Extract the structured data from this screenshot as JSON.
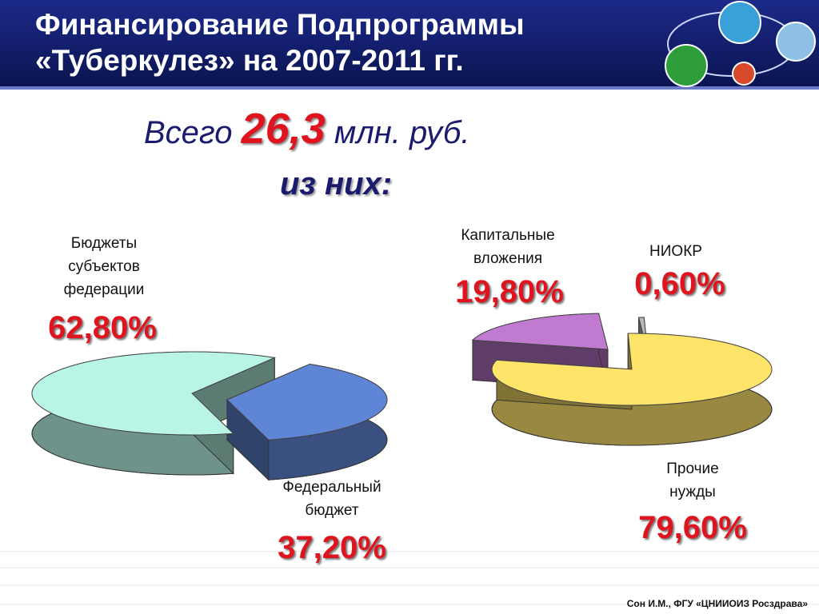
{
  "slide": {
    "title": "Финансирование Подпрограммы «Туберкулез» на 2007-2011 гг.",
    "total_prefix": "Всего",
    "total_value": "26,3",
    "total_unit": "млн. руб.",
    "subtitle": "из них:",
    "footer": "Сон И.М., ФГУ «ЦНИИОИЗ Росздрава»"
  },
  "chart_data": [
    {
      "type": "pie3d",
      "categories": [
        "Бюджеты субъектов федерации",
        "Федеральный бюджет"
      ],
      "values": [
        62.8,
        37.2
      ],
      "value_labels": [
        "62,80%",
        "37,20%"
      ],
      "colors": [
        "#b8f5e6",
        "#5f85d6"
      ]
    },
    {
      "type": "pie3d",
      "categories": [
        "Капитальные вложения",
        "НИОКР",
        "Прочие нужды"
      ],
      "values": [
        19.8,
        0.6,
        79.6
      ],
      "value_labels": [
        "19,80%",
        "0,60%",
        "79,60%"
      ],
      "colors": [
        "#c07ad0",
        "#b8b8b8",
        "#ffe46a"
      ]
    }
  ]
}
